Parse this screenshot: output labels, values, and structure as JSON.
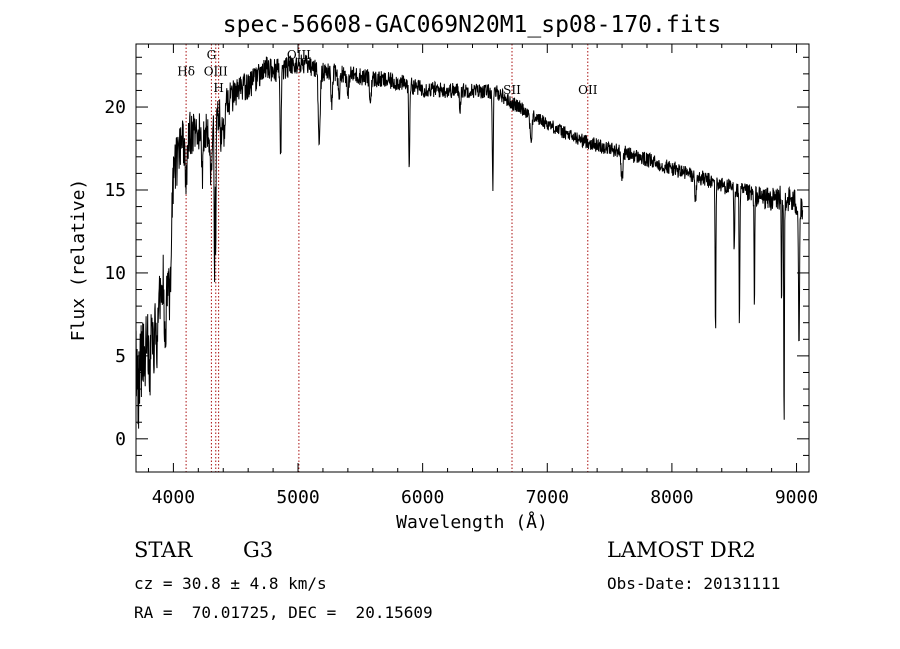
{
  "chart_data": {
    "type": "line",
    "title": "spec-56608-GAC069N20M1_sp08-170.fits",
    "xlabel": "Wavelength (Å)",
    "ylabel": "Flux (relative)",
    "xlim": [
      3700,
      9100
    ],
    "ylim": [
      -2,
      23.8
    ],
    "x_ticks": [
      "4000",
      "5000",
      "6000",
      "7000",
      "8000",
      "9000"
    ],
    "y_ticks": [
      "0",
      "5",
      "10",
      "15",
      "20"
    ],
    "line_color": "#000000",
    "marker_color": "#aa1111",
    "line_markers": [
      {
        "label": "Hδ",
        "wavelength": 4102,
        "label_flux": 21.9
      },
      {
        "label": "G",
        "wavelength": 4305,
        "label_flux": 22.9
      },
      {
        "label": "OIII",
        "wavelength": 4340,
        "label_flux": 21.9
      },
      {
        "label": "Hγ",
        "wavelength": 4363,
        "label_flux": 20.9
      },
      {
        "label": "OIII",
        "wavelength": 5007,
        "label_flux": 22.9
      },
      {
        "label": "SII",
        "wavelength": 6717,
        "label_flux": 20.8
      },
      {
        "label": "OII",
        "wavelength": 7325,
        "label_flux": 20.8
      }
    ],
    "label_override": {
      "3": "H"
    },
    "continuum": [
      [
        3700,
        5
      ],
      [
        3760,
        7
      ],
      [
        3850,
        10
      ],
      [
        3950,
        14
      ],
      [
        4050,
        17.5
      ],
      [
        4150,
        18.5
      ],
      [
        4250,
        18.5
      ],
      [
        4350,
        19.5
      ],
      [
        4450,
        20.5
      ],
      [
        4600,
        21.3
      ],
      [
        4750,
        22.3
      ],
      [
        4850,
        22.2
      ],
      [
        4950,
        22.5
      ],
      [
        5050,
        22.6
      ],
      [
        5200,
        22.1
      ],
      [
        5400,
        22
      ],
      [
        5600,
        21.7
      ],
      [
        5800,
        21.5
      ],
      [
        6000,
        21.1
      ],
      [
        6200,
        21
      ],
      [
        6400,
        21
      ],
      [
        6600,
        20.9
      ],
      [
        6700,
        20.3
      ],
      [
        6800,
        19.9
      ],
      [
        6900,
        19.4
      ],
      [
        7000,
        19
      ],
      [
        7200,
        18.2
      ],
      [
        7400,
        17.7
      ],
      [
        7600,
        17.3
      ],
      [
        7800,
        16.8
      ],
      [
        8000,
        16.3
      ],
      [
        8200,
        15.8
      ],
      [
        8400,
        15.3
      ],
      [
        8600,
        14.8
      ],
      [
        8800,
        14.4
      ],
      [
        8900,
        14.6
      ],
      [
        9000,
        14.2
      ],
      [
        9050,
        13.5
      ]
    ],
    "absorption_features": [
      [
        3720,
        3,
        8
      ],
      [
        3745,
        2,
        8
      ],
      [
        3770,
        4,
        8
      ],
      [
        3810,
        5,
        10
      ],
      [
        3840,
        4,
        10
      ],
      [
        3870,
        5,
        10
      ],
      [
        3900,
        4,
        10
      ],
      [
        3935,
        7,
        12
      ],
      [
        3970,
        6,
        12
      ],
      [
        4102,
        3,
        8
      ],
      [
        4230,
        3,
        6
      ],
      [
        4300,
        3,
        10
      ],
      [
        4330,
        10,
        3
      ],
      [
        4340,
        8,
        3
      ],
      [
        4384,
        2,
        6
      ],
      [
        4405,
        2,
        6
      ],
      [
        4861,
        5,
        5
      ],
      [
        5170,
        4,
        8
      ],
      [
        5270,
        2,
        6
      ],
      [
        5328,
        1.5,
        6
      ],
      [
        5400,
        1.5,
        6
      ],
      [
        5580,
        1.5,
        6
      ],
      [
        5892,
        5,
        4
      ],
      [
        6300,
        1,
        5
      ],
      [
        6563,
        6,
        4
      ],
      [
        6870,
        1.5,
        8
      ],
      [
        7600,
        1.5,
        8
      ],
      [
        8190,
        1.5,
        6
      ],
      [
        8350,
        9,
        3
      ],
      [
        8500,
        4,
        3
      ],
      [
        8542,
        8,
        3
      ],
      [
        8662,
        7,
        3
      ],
      [
        8880,
        7,
        3
      ],
      [
        8900,
        14,
        3
      ],
      [
        9020,
        8,
        4
      ]
    ],
    "noise_amplitude": [
      [
        3700,
        2.5
      ],
      [
        4000,
        1.6
      ],
      [
        4400,
        1
      ],
      [
        5000,
        0.6
      ],
      [
        7000,
        0.4
      ],
      [
        8500,
        0.5
      ],
      [
        9050,
        0.9
      ]
    ],
    "wavelength_step": 2.5
  },
  "info": {
    "object_class": "STAR",
    "subclass": "G3",
    "survey": "LAMOST DR2",
    "cz": "cz = 30.8 ± 4.8 km/s",
    "obs_date": "Obs-Date: 20131111",
    "coords": "RA =  70.01725, DEC =  20.15609"
  }
}
